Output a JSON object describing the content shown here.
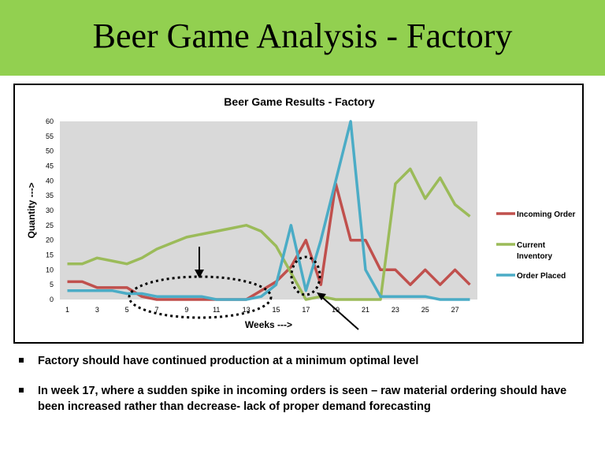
{
  "slide": {
    "title": "Beer Game Analysis - Factory",
    "bullets": [
      "Factory should have continued production at a minimum  optimal  level",
      "In week 17, where a sudden spike in incoming orders is seen –  raw material ordering should have been increased rather than decrease- lack of proper demand forecasting"
    ]
  },
  "chart_data": {
    "type": "line",
    "title": "Beer Game Results - Factory",
    "xlabel": "Weeks --->",
    "ylabel": "Quantity --->",
    "x": [
      1,
      2,
      3,
      4,
      5,
      6,
      7,
      8,
      9,
      10,
      11,
      12,
      13,
      14,
      15,
      16,
      17,
      18,
      19,
      20,
      21,
      22,
      23,
      24,
      25,
      26,
      27,
      28
    ],
    "x_tick_labels": [
      "1",
      "3",
      "5",
      "7",
      "9",
      "11",
      "13",
      "15",
      "17",
      "19",
      "21",
      "23",
      "25",
      "27"
    ],
    "y_ticks": [
      0,
      5,
      10,
      15,
      20,
      25,
      30,
      35,
      40,
      45,
      50,
      55,
      60
    ],
    "ylim": [
      0,
      60
    ],
    "grid": false,
    "legend_position": "right",
    "series": [
      {
        "name": "Incoming Order",
        "color": "#c0504d",
        "values": [
          6,
          6,
          4,
          4,
          4,
          1,
          0,
          0,
          0,
          0,
          0,
          0,
          0,
          3,
          6,
          11,
          20,
          5,
          39,
          20,
          20,
          10,
          10,
          5,
          10,
          5,
          10,
          5
        ]
      },
      {
        "name": "Current Inventory",
        "color": "#9bbb59",
        "values": [
          12,
          12,
          14,
          13,
          12,
          14,
          17,
          19,
          21,
          22,
          23,
          24,
          25,
          23,
          18,
          9,
          0,
          1,
          0,
          0,
          0,
          0,
          39,
          44,
          34,
          41,
          32,
          28
        ]
      },
      {
        "name": "Order Placed",
        "color": "#4bacc6",
        "values": [
          3,
          3,
          3,
          3,
          2,
          2,
          1,
          1,
          1,
          1,
          0,
          0,
          0,
          1,
          5,
          25,
          3,
          20,
          40,
          60,
          10,
          1,
          1,
          1,
          1,
          0,
          0,
          0
        ]
      }
    ]
  }
}
